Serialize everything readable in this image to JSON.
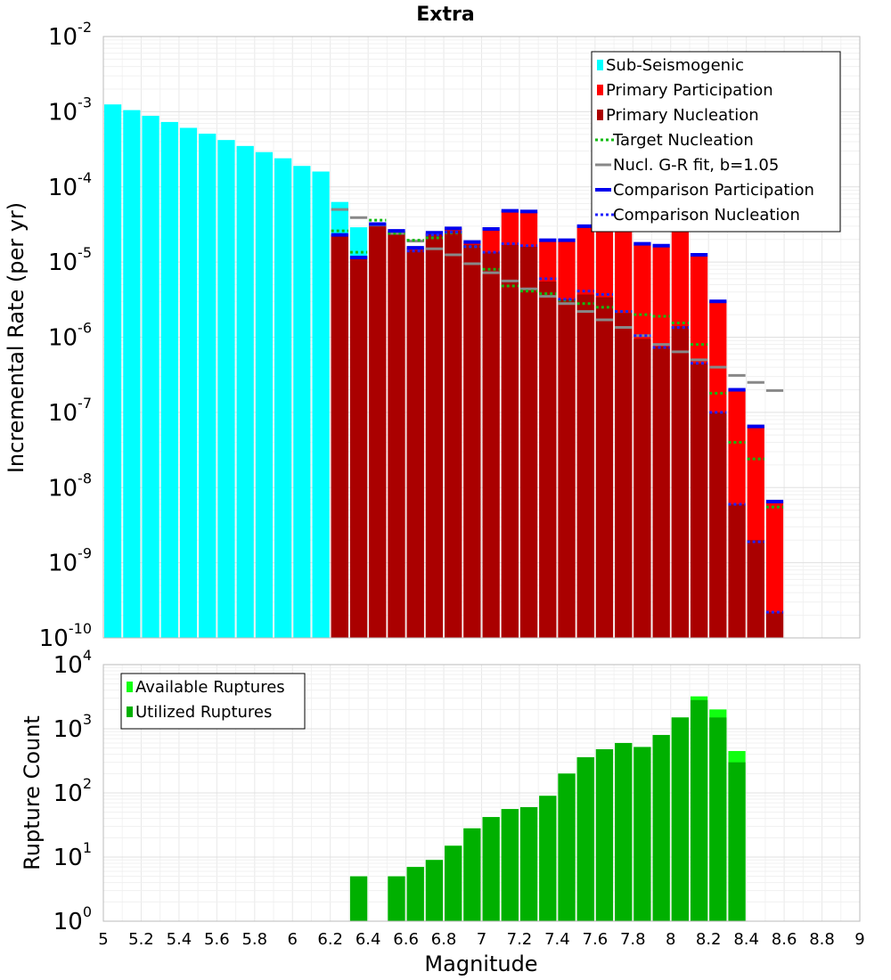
{
  "title": "Extra",
  "xlabel": "Magnitude",
  "x_tick_labels": [
    "5",
    "5.2",
    "5.4",
    "5.6",
    "5.8",
    "6",
    "6.2",
    "6.4",
    "6.6",
    "6.8",
    "7",
    "7.2",
    "7.4",
    "7.6",
    "7.8",
    "8",
    "8.2",
    "8.4",
    "8.6",
    "8.8",
    "9"
  ],
  "colors": {
    "sub_seismogenic": "#00ffff",
    "primary_participation": "#ff0000",
    "primary_nucleation": "#aa0000",
    "target_nucleation": "#11bb11",
    "gr_fit": "#888888",
    "gr_fit_dark": "#222222",
    "comparison_participation": "#0000ee",
    "comparison_nucleation": "#2222ff",
    "available_ruptures": "#11ff11",
    "utilized_ruptures": "#00b000"
  },
  "chart_data": [
    {
      "type": "bar",
      "title": "Extra",
      "xlabel": "Magnitude",
      "ylabel": "Incremental Rate (per yr)",
      "yscale": "log",
      "xlim": [
        5,
        9
      ],
      "ylim_exp": [
        -10,
        -2
      ],
      "y_tick_exponents": [
        "-10",
        "-9",
        "-8",
        "-7",
        "-6",
        "-5",
        "-4",
        "-3",
        "-2"
      ],
      "legend_position": "top-right",
      "bin_width": 0.1,
      "x_sub": [
        5.05,
        5.15,
        5.25,
        5.35,
        5.45,
        5.55,
        5.65,
        5.75,
        5.85,
        5.95,
        6.05,
        6.15,
        6.25,
        6.35
      ],
      "sub_seismogenic": [
        0.00125,
        0.00105,
        0.00088,
        0.00073,
        0.00061,
        0.00051,
        0.00042,
        0.00035,
        0.00029,
        0.00024,
        0.00019,
        0.00016,
        6.3e-05,
        2.9e-05
      ],
      "x": [
        6.25,
        6.35,
        6.45,
        6.55,
        6.65,
        6.75,
        6.85,
        6.95,
        7.05,
        7.15,
        7.25,
        7.35,
        7.45,
        7.55,
        7.65,
        7.75,
        7.85,
        7.95,
        8.05,
        8.15,
        8.25,
        8.35,
        8.45,
        8.55
      ],
      "series": [
        {
          "name": "Sub-Seismogenic"
        },
        {
          "name": "Primary Participation",
          "values": [
            2.3e-05,
            1.2e-05,
            3.2e-05,
            2.6e-05,
            1.55e-05,
            2.45e-05,
            2.8e-05,
            1.8e-05,
            2.7e-05,
            4.8e-05,
            4.6e-05,
            1.9e-05,
            1.9e-05,
            3e-05,
            3.5e-05,
            3.2e-05,
            1.7e-05,
            1.6e-05,
            3.5e-05,
            1.2e-05,
            3e-06,
            2e-07,
            6.5e-08,
            6.5e-09
          ]
        },
        {
          "name": "Primary Nucleation",
          "values": [
            2.3e-05,
            1.2e-05,
            3.2e-05,
            2.5e-05,
            1.45e-05,
            2.35e-05,
            2.6e-05,
            1.7e-05,
            1.35e-05,
            1.7e-05,
            1.6e-05,
            5.5e-06,
            3.2e-06,
            3.7e-06,
            3.4e-06,
            2.1e-06,
            9.5e-07,
            7.5e-07,
            1.4e-06,
            4.5e-07,
            1e-07,
            6e-09,
            2e-09,
            2.2e-10
          ]
        },
        {
          "name": "Target Nucleation",
          "values": [
            2.6e-05,
            1.35e-05,
            3.6e-05,
            2.4e-05,
            1.95e-05,
            2.1e-05,
            2.45e-05,
            1.6e-05,
            8e-06,
            4.8e-06,
            4.1e-06,
            3.8e-06,
            3.1e-06,
            2.8e-06,
            2.5e-06,
            2.2e-06,
            2e-06,
            1.9e-06,
            1.55e-06,
            8e-07,
            1.8e-07,
            4e-08,
            2.4e-08,
            5.5e-09
          ]
        },
        {
          "name": "Nucl. G-R fit, b=1.05",
          "values": [
            5e-05,
            3.9e-05,
            3.1e-05,
            2.4e-05,
            1.9e-05,
            1.5e-05,
            1.25e-05,
            9.5e-06,
            7.2e-06,
            5.6e-06,
            4.4e-06,
            3.5e-06,
            2.8e-06,
            2.2e-06,
            1.7e-06,
            1.35e-06,
            1.05e-06,
            8e-07,
            6.4e-07,
            5e-07,
            4e-07,
            3.1e-07,
            2.5e-07,
            1.95e-07
          ]
        },
        {
          "name": "Comparison Participation",
          "values": [
            2.3e-05,
            1.15e-05,
            3.2e-05,
            2.6e-05,
            1.55e-05,
            2.45e-05,
            2.8e-05,
            1.85e-05,
            2.75e-05,
            4.8e-05,
            4.7e-05,
            1.95e-05,
            1.95e-05,
            3e-05,
            3.5e-05,
            3.2e-05,
            1.75e-05,
            1.65e-05,
            3.6e-05,
            1.25e-05,
            3e-06,
            2e-07,
            6.5e-08,
            6.5e-09
          ]
        },
        {
          "name": "Comparison Nucleation",
          "values": [
            null,
            null,
            null,
            null,
            1.4e-05,
            2.3e-05,
            2.5e-05,
            1.6e-05,
            1.35e-05,
            1.75e-05,
            1.65e-05,
            6e-06,
            3.2e-06,
            4.1e-06,
            3.7e-06,
            2.2e-06,
            1.05e-06,
            7.3e-07,
            1.35e-06,
            4.5e-07,
            1e-07,
            6e-09,
            1.9e-09,
            2.2e-10
          ]
        }
      ]
    },
    {
      "type": "bar",
      "xlabel": "Magnitude",
      "ylabel": "Rupture Count",
      "yscale": "log",
      "xlim": [
        5,
        9
      ],
      "ylim_exp": [
        0,
        4
      ],
      "y_tick_exponents": [
        "0",
        "1",
        "2",
        "3",
        "4"
      ],
      "legend_position": "top-left",
      "x": [
        6.35,
        6.55,
        6.65,
        6.75,
        6.85,
        6.95,
        7.05,
        7.15,
        7.25,
        7.35,
        7.45,
        7.55,
        7.65,
        7.75,
        7.85,
        7.95,
        8.05,
        8.15,
        8.25,
        8.35
      ],
      "series": [
        {
          "name": "Available Ruptures",
          "values": [
            5,
            5,
            7,
            9,
            15,
            28,
            42,
            56,
            60,
            90,
            200,
            360,
            480,
            600,
            520,
            800,
            1500,
            3200,
            2000,
            450
          ]
        },
        {
          "name": "Utilized Ruptures",
          "values": [
            5,
            5,
            7,
            9,
            15,
            28,
            42,
            56,
            60,
            90,
            200,
            360,
            480,
            600,
            520,
            800,
            1500,
            2800,
            1500,
            300
          ]
        }
      ]
    }
  ],
  "legend_rate": [
    {
      "label": "Sub-Seismogenic",
      "kind": "box",
      "color": "#00ffff"
    },
    {
      "label": "Primary Participation",
      "kind": "box",
      "color": "#ff0000"
    },
    {
      "label": "Primary Nucleation",
      "kind": "box",
      "color": "#aa0000"
    },
    {
      "label": " Target Nucleation",
      "kind": "dot",
      "color": "#11bb11"
    },
    {
      "label": "Nucl. G-R fit, b=1.05",
      "kind": "line",
      "color": "#888888"
    },
    {
      "label": "Comparison Participation",
      "kind": "thick",
      "color": "#0000ee"
    },
    {
      "label": " Comparison Nucleation",
      "kind": "dot",
      "color": "#2222ff"
    }
  ],
  "legend_count": [
    {
      "label": "Available Ruptures",
      "kind": "box",
      "color": "#11ff11"
    },
    {
      "label": "Utilized Ruptures",
      "kind": "box",
      "color": "#00b000"
    }
  ]
}
